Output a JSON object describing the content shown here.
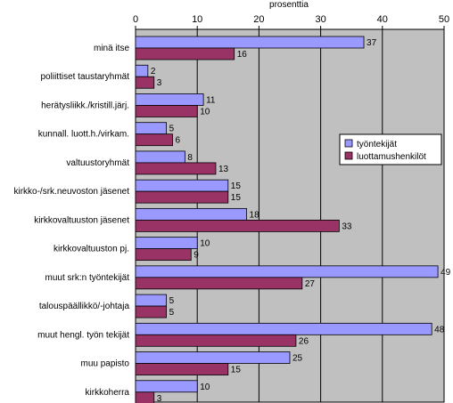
{
  "chart_data": {
    "type": "bar",
    "orientation": "horizontal",
    "title": "",
    "xlabel": "prosenttia",
    "ylabel": "",
    "xlim": [
      0,
      50
    ],
    "xticks": [
      0,
      10,
      20,
      30,
      40,
      50
    ],
    "grid": true,
    "legend_position": "right",
    "categories": [
      "minä itse",
      "poliittiset taustaryhmät",
      "herätysliikk./kristill.järj.",
      "kunnall. luott.h./virkam.",
      "valtuustoryhmät",
      "kirkko-/srk.neuvoston jäsenet",
      "kirkkovaltuuston jäsenet",
      "kirkkovaltuuston pj.",
      "muut srk:n työntekijät",
      "talouspäällikkö/-johtaja",
      "muut hengl. työn tekijät",
      "muu papisto",
      "kirkkoherra"
    ],
    "series": [
      {
        "name": "työntekijät",
        "color": "#9999ff",
        "values": [
          37,
          2,
          11,
          5,
          8,
          15,
          18,
          10,
          49,
          5,
          48,
          25,
          10
        ]
      },
      {
        "name": "luottamushenkilöt",
        "color": "#993366",
        "values": [
          16,
          3,
          10,
          6,
          13,
          15,
          33,
          9,
          27,
          5,
          26,
          15,
          3
        ]
      }
    ]
  }
}
